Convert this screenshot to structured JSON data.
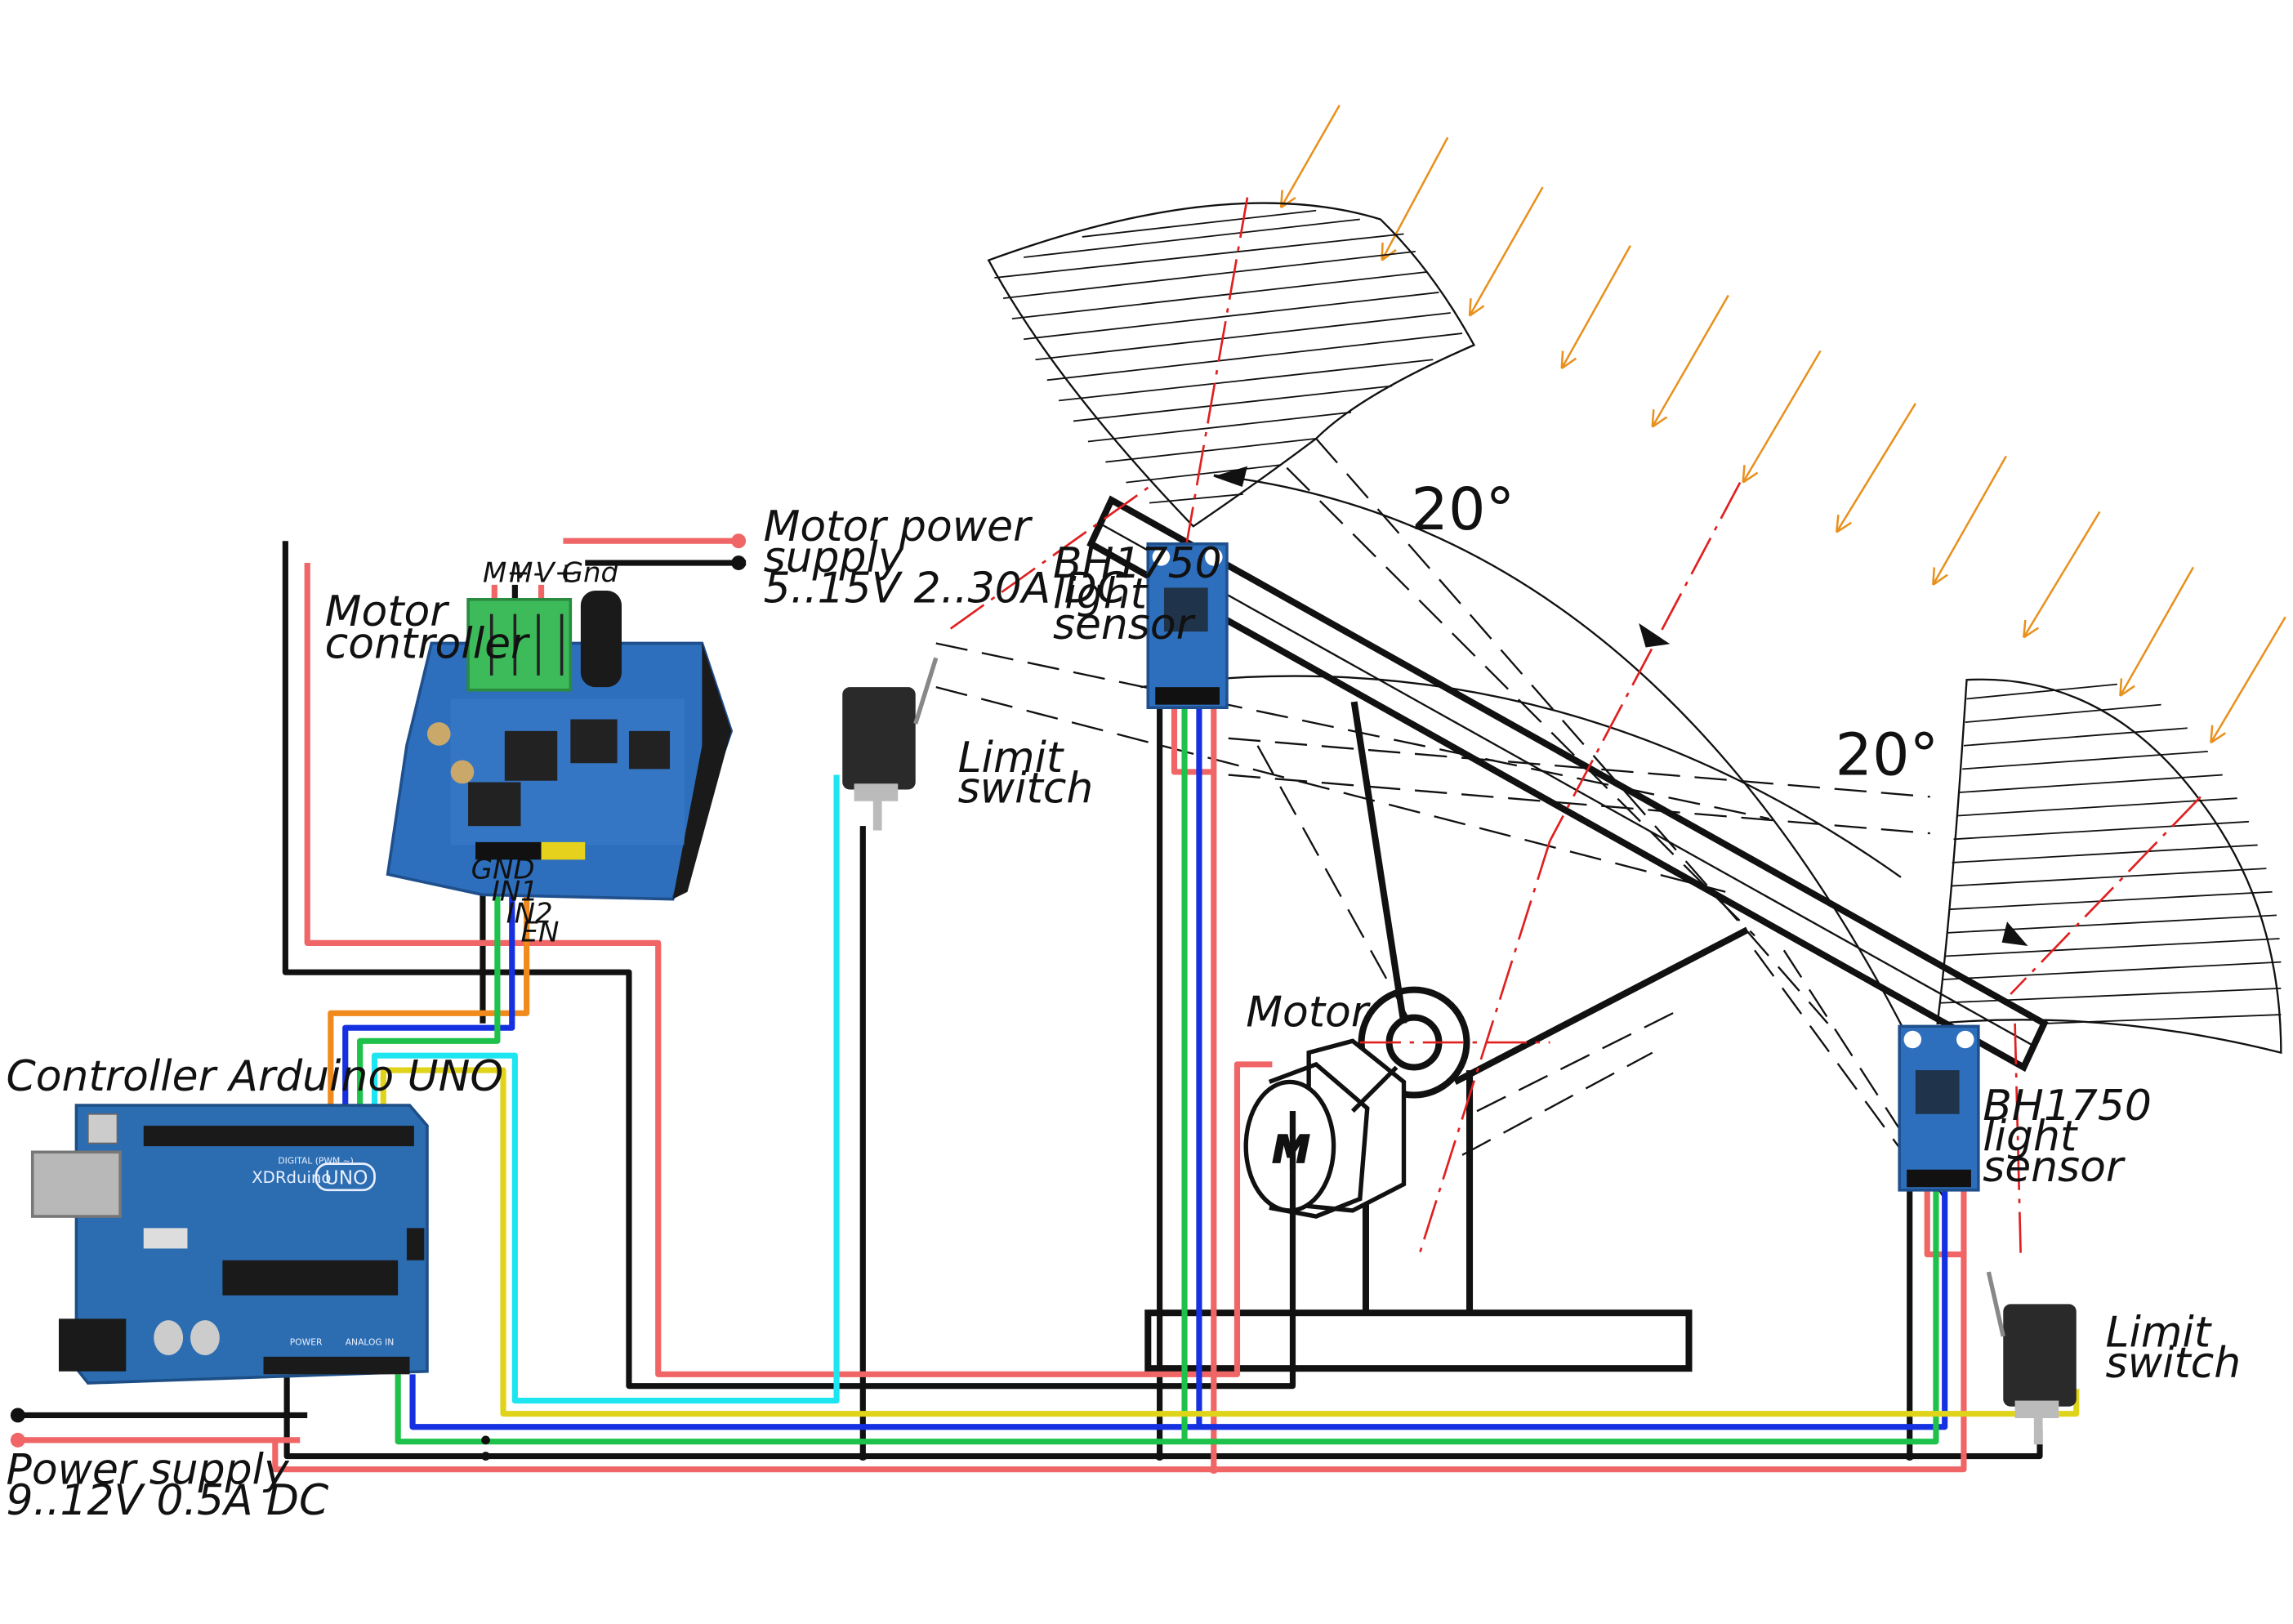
{
  "labels": {
    "motor_controller": [
      "Motor",
      "controller"
    ],
    "motor_power": [
      "Motor power",
      "supply",
      "5..15V 2..30A DC"
    ],
    "arduino": "Controller Arduino UNO",
    "power_supply": [
      "Power supply",
      "9..12V 0.5A DC"
    ],
    "sensor": [
      "BH1750",
      "light",
      "sensor"
    ],
    "limit_switch": [
      "Limit",
      "switch"
    ],
    "motor": "Motor",
    "motor_symbol": "M",
    "angle": "20°"
  },
  "controller_pins": {
    "top": [
      "M+",
      "M-",
      "V+",
      "Gnd"
    ],
    "bottom": [
      "GND",
      "IN1",
      "IN2",
      "EN"
    ]
  },
  "board": {
    "brand": "XDRduino",
    "model": "UNO",
    "digital_header": "DIGITAL (PWM ~)",
    "power_header": "POWER",
    "analog_header": "ANALOG IN"
  },
  "colors": {
    "power_red": "#f06565",
    "ground_black": "#111111",
    "wire_orange": "#f08a1c",
    "wire_blue": "#1430e0",
    "wire_green": "#1ec24a",
    "wire_cyan": "#1ee6f0",
    "wire_yellow": "#e0d41a",
    "sun_rays": "#e8901c",
    "axis_dash": "#e02020",
    "pcb_blue": "#2e6fbd",
    "terminal_green": "#3dbb5a"
  }
}
